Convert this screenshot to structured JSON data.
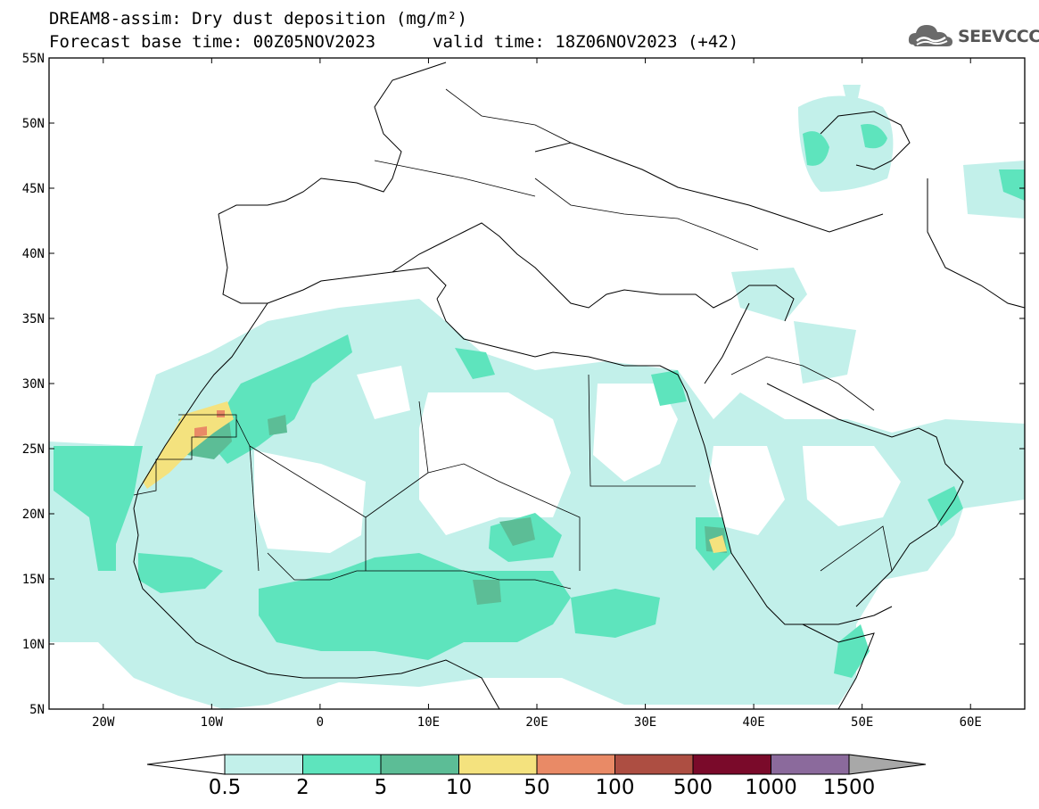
{
  "header": {
    "title": "DREAM8-assim: Dry dust deposition (mg/m²)",
    "base_time": "Forecast base time: 00Z05NOV2023",
    "valid_time": "valid time: 18Z06NOV2023 (+42)"
  },
  "logo": {
    "text": "SEEVCCC",
    "icon": "cloud-logo-icon"
  },
  "map": {
    "lat_ticks": [
      "55N",
      "50N",
      "45N",
      "40N",
      "35N",
      "30N",
      "25N",
      "20N",
      "15N",
      "10N",
      "5N"
    ],
    "lon_ticks": [
      "20W",
      "10W",
      "0",
      "10E",
      "20E",
      "30E",
      "40E",
      "50E",
      "60E"
    ],
    "extent": {
      "lon_min": -25,
      "lon_max": 65,
      "lat_min": 5,
      "lat_max": 55
    }
  },
  "colorbar": {
    "labels": [
      "0.5",
      "2",
      "5",
      "10",
      "50",
      "100",
      "500",
      "1000",
      "1500"
    ],
    "colors": [
      "#c2f0ea",
      "#5ee4bd",
      "#5cbd96",
      "#f4e27e",
      "#e98a66",
      "#ad4e42",
      "#7a0a2a",
      "#8b6a9c"
    ],
    "under_color": "#ffffff",
    "over_color": "#a8a8a8",
    "units": "mg/m²"
  },
  "palette": {
    "level1": "#c2f0ea",
    "level2": "#5ee4bd",
    "level3": "#5cbd96",
    "level4": "#f4e27e",
    "level5": "#e98a66"
  }
}
